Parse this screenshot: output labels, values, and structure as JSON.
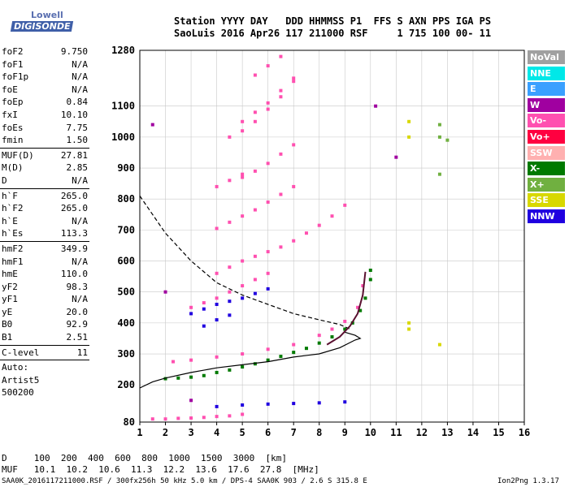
{
  "logo": {
    "line1": "Lowell",
    "line2": "DIGISONDE"
  },
  "header": {
    "line1": "Station YYYY DAY   DDD HHMMSS P1  FFS S AXN PPS IGA PS",
    "line2": "SaoLuis 2016 Apr26 117 211000 RSF     1 715 100 00- 11"
  },
  "params": {
    "group1": [
      {
        "k": "foF2",
        "v": "9.750"
      },
      {
        "k": "foF1",
        "v": "N/A"
      },
      {
        "k": "foF1p",
        "v": "N/A"
      },
      {
        "k": "foE",
        "v": "N/A"
      },
      {
        "k": "foEp",
        "v": "0.84"
      },
      {
        "k": "fxI",
        "v": "10.10"
      },
      {
        "k": "foEs",
        "v": "7.75"
      },
      {
        "k": "fmin",
        "v": "1.50"
      }
    ],
    "group2": [
      {
        "k": "MUF(D)",
        "v": "27.81"
      },
      {
        "k": "M(D)",
        "v": "2.85"
      },
      {
        "k": "D",
        "v": "N/A"
      }
    ],
    "group3": [
      {
        "k": "h`F",
        "v": "265.0"
      },
      {
        "k": "h`F2",
        "v": "265.0"
      },
      {
        "k": "h`E",
        "v": "N/A"
      },
      {
        "k": "h`Es",
        "v": "113.3"
      }
    ],
    "group4": [
      {
        "k": "hmF2",
        "v": "349.9"
      },
      {
        "k": "hmF1",
        "v": "N/A"
      },
      {
        "k": "hmE",
        "v": "110.0"
      },
      {
        "k": "yF2",
        "v": "98.3"
      },
      {
        "k": "yF1",
        "v": "N/A"
      },
      {
        "k": "yE",
        "v": "20.0"
      },
      {
        "k": "B0",
        "v": "92.9"
      },
      {
        "k": "B1",
        "v": "2.51"
      }
    ],
    "clevel": {
      "k": "C-level",
      "v": "11"
    },
    "auto": [
      "Auto:",
      "Artist5",
      "500200"
    ]
  },
  "legend": [
    {
      "label": "NoVal",
      "color": "#a0a0a0"
    },
    {
      "label": "NNE",
      "color": "#00e8e8"
    },
    {
      "label": "E",
      "color": "#3aa0ff"
    },
    {
      "label": "W",
      "color": "#a000a0"
    },
    {
      "label": "Vo-",
      "color": "#ff50b0"
    },
    {
      "label": "Vo+",
      "color": "#ff0040"
    },
    {
      "label": "SSW",
      "color": "#ffb0b0"
    },
    {
      "label": "X-",
      "color": "#007a00"
    },
    {
      "label": "X+",
      "color": "#70b040"
    },
    {
      "label": "SSE",
      "color": "#d8d800"
    },
    {
      "label": "NNW",
      "color": "#2000e0"
    }
  ],
  "chart_data": {
    "type": "scatter",
    "xlabel": "",
    "ylabel": "",
    "xlim": [
      1,
      16
    ],
    "ylim": [
      80,
      1280
    ],
    "xticks": [
      "1",
      "2",
      "3",
      "4",
      "5",
      "6",
      "7",
      "8",
      "9",
      "10",
      "11",
      "12",
      "13",
      "14",
      "15",
      "16"
    ],
    "yticks": [
      "80",
      "200",
      "300",
      "400",
      "500",
      "600",
      "700",
      "800",
      "900",
      "1000",
      "1100",
      "1280"
    ],
    "ytick_values": [
      80,
      200,
      300,
      400,
      500,
      600,
      700,
      800,
      900,
      1000,
      1100,
      1280
    ],
    "series": [
      {
        "name": "X-",
        "color": "#007a00",
        "points": [
          [
            2.0,
            220
          ],
          [
            2.5,
            222
          ],
          [
            3.0,
            225
          ],
          [
            3.5,
            230
          ],
          [
            4.0,
            240
          ],
          [
            4.5,
            248
          ],
          [
            5.0,
            258
          ],
          [
            5.5,
            268
          ],
          [
            6.0,
            280
          ],
          [
            6.5,
            292
          ],
          [
            7.0,
            305
          ],
          [
            7.5,
            318
          ],
          [
            8.0,
            335
          ],
          [
            8.5,
            355
          ],
          [
            9.0,
            380
          ],
          [
            9.3,
            400
          ],
          [
            9.6,
            440
          ],
          [
            9.8,
            480
          ],
          [
            10.0,
            540
          ],
          [
            10.0,
            570
          ]
        ]
      },
      {
        "name": "Vo-",
        "color": "#ff50b0",
        "points": [
          [
            1.5,
            90
          ],
          [
            2.0,
            90
          ],
          [
            2.5,
            92
          ],
          [
            3.0,
            93
          ],
          [
            3.5,
            95
          ],
          [
            4.0,
            98
          ],
          [
            4.5,
            100
          ],
          [
            5.0,
            105
          ],
          [
            2.3,
            275
          ],
          [
            3.0,
            280
          ],
          [
            4.0,
            290
          ],
          [
            5.0,
            300
          ],
          [
            6.0,
            315
          ],
          [
            7.0,
            330
          ],
          [
            8.0,
            360
          ],
          [
            8.5,
            380
          ],
          [
            9.0,
            405
          ],
          [
            9.5,
            450
          ],
          [
            9.7,
            520
          ],
          [
            3.0,
            450
          ],
          [
            3.5,
            465
          ],
          [
            4.0,
            480
          ],
          [
            4.5,
            500
          ],
          [
            5.0,
            520
          ],
          [
            5.5,
            540
          ],
          [
            6.0,
            560
          ],
          [
            4.0,
            560
          ],
          [
            4.5,
            580
          ],
          [
            5.0,
            600
          ],
          [
            5.5,
            615
          ],
          [
            6.0,
            630
          ],
          [
            6.5,
            645
          ],
          [
            7.0,
            665
          ],
          [
            7.5,
            690
          ],
          [
            8.0,
            715
          ],
          [
            8.5,
            745
          ],
          [
            9.0,
            780
          ],
          [
            4.0,
            705
          ],
          [
            4.5,
            725
          ],
          [
            5.0,
            745
          ],
          [
            5.5,
            765
          ],
          [
            6.0,
            790
          ],
          [
            6.5,
            815
          ],
          [
            7.0,
            840
          ],
          [
            5.0,
            870
          ],
          [
            5.5,
            890
          ],
          [
            6.0,
            915
          ],
          [
            6.5,
            945
          ],
          [
            7.0,
            975
          ],
          [
            4.0,
            840
          ],
          [
            4.5,
            860
          ],
          [
            5.0,
            880
          ],
          [
            5.0,
            1050
          ],
          [
            5.5,
            1080
          ],
          [
            6.0,
            1110
          ],
          [
            6.5,
            1150
          ],
          [
            7.0,
            1190
          ],
          [
            4.5,
            1000
          ],
          [
            5.0,
            1020
          ],
          [
            5.5,
            1050
          ],
          [
            6.0,
            1090
          ],
          [
            6.5,
            1130
          ],
          [
            7.0,
            1180
          ],
          [
            5.5,
            1200
          ],
          [
            6.0,
            1230
          ],
          [
            6.5,
            1260
          ]
        ]
      },
      {
        "name": "NNW",
        "color": "#2000e0",
        "points": [
          [
            3.0,
            430
          ],
          [
            3.5,
            445
          ],
          [
            4.0,
            460
          ],
          [
            4.5,
            470
          ],
          [
            5.0,
            480
          ],
          [
            5.5,
            495
          ],
          [
            6.0,
            510
          ],
          [
            4.0,
            130
          ],
          [
            5.0,
            135
          ],
          [
            6.0,
            138
          ],
          [
            7.0,
            140
          ],
          [
            8.0,
            142
          ],
          [
            9.0,
            145
          ],
          [
            3.5,
            390
          ],
          [
            4.0,
            410
          ],
          [
            4.5,
            425
          ]
        ]
      },
      {
        "name": "W",
        "color": "#a000a0",
        "points": [
          [
            1.5,
            1040
          ],
          [
            2.0,
            500
          ],
          [
            3.0,
            150
          ],
          [
            10.2,
            1100
          ],
          [
            11.0,
            935
          ]
        ]
      },
      {
        "name": "SSE",
        "color": "#d8d800",
        "points": [
          [
            11.5,
            1050
          ],
          [
            11.5,
            1000
          ],
          [
            11.5,
            400
          ],
          [
            11.5,
            380
          ],
          [
            12.7,
            330
          ]
        ]
      },
      {
        "name": "X+",
        "color": "#70b040",
        "points": [
          [
            12.7,
            1040
          ],
          [
            12.7,
            1000
          ],
          [
            12.7,
            880
          ],
          [
            13.0,
            990
          ]
        ]
      }
    ],
    "curves": [
      {
        "name": "dashed",
        "style": "dashed",
        "x": [
          1.0,
          2.0,
          3.0,
          4.0,
          5.0,
          6.0,
          7.0,
          8.0,
          8.8,
          9.2
        ],
        "y": [
          810,
          690,
          600,
          530,
          490,
          460,
          430,
          410,
          395,
          380
        ]
      },
      {
        "name": "solid",
        "style": "solid",
        "x": [
          1.0,
          1.5,
          2.0,
          3.0,
          4.0,
          5.0,
          6.0,
          7.0,
          8.0,
          8.8,
          9.4,
          9.6,
          9.4,
          9.0
        ],
        "y": [
          190,
          210,
          222,
          240,
          255,
          265,
          275,
          290,
          300,
          320,
          345,
          350,
          360,
          370
        ]
      },
      {
        "name": "trace",
        "style": "solid-dark",
        "x": [
          8.3,
          8.8,
          9.2,
          9.5,
          9.7,
          9.8
        ],
        "y": [
          330,
          355,
          390,
          430,
          490,
          565
        ]
      }
    ]
  },
  "footer": {
    "dlabels": "D     100  200  400  600  800  1000  1500  3000  [km]",
    "muf": "MUF   10.1  10.2  10.6  11.3  12.2  13.6  17.6  27.8  [MHz]",
    "file": "SAA0K_2016117211000.RSF / 300fx256h 50 kHz 5.0 km / DPS-4 SAA0K 903 / 2.6 S 315.8 E",
    "version": "Ion2Png 1.3.17"
  }
}
